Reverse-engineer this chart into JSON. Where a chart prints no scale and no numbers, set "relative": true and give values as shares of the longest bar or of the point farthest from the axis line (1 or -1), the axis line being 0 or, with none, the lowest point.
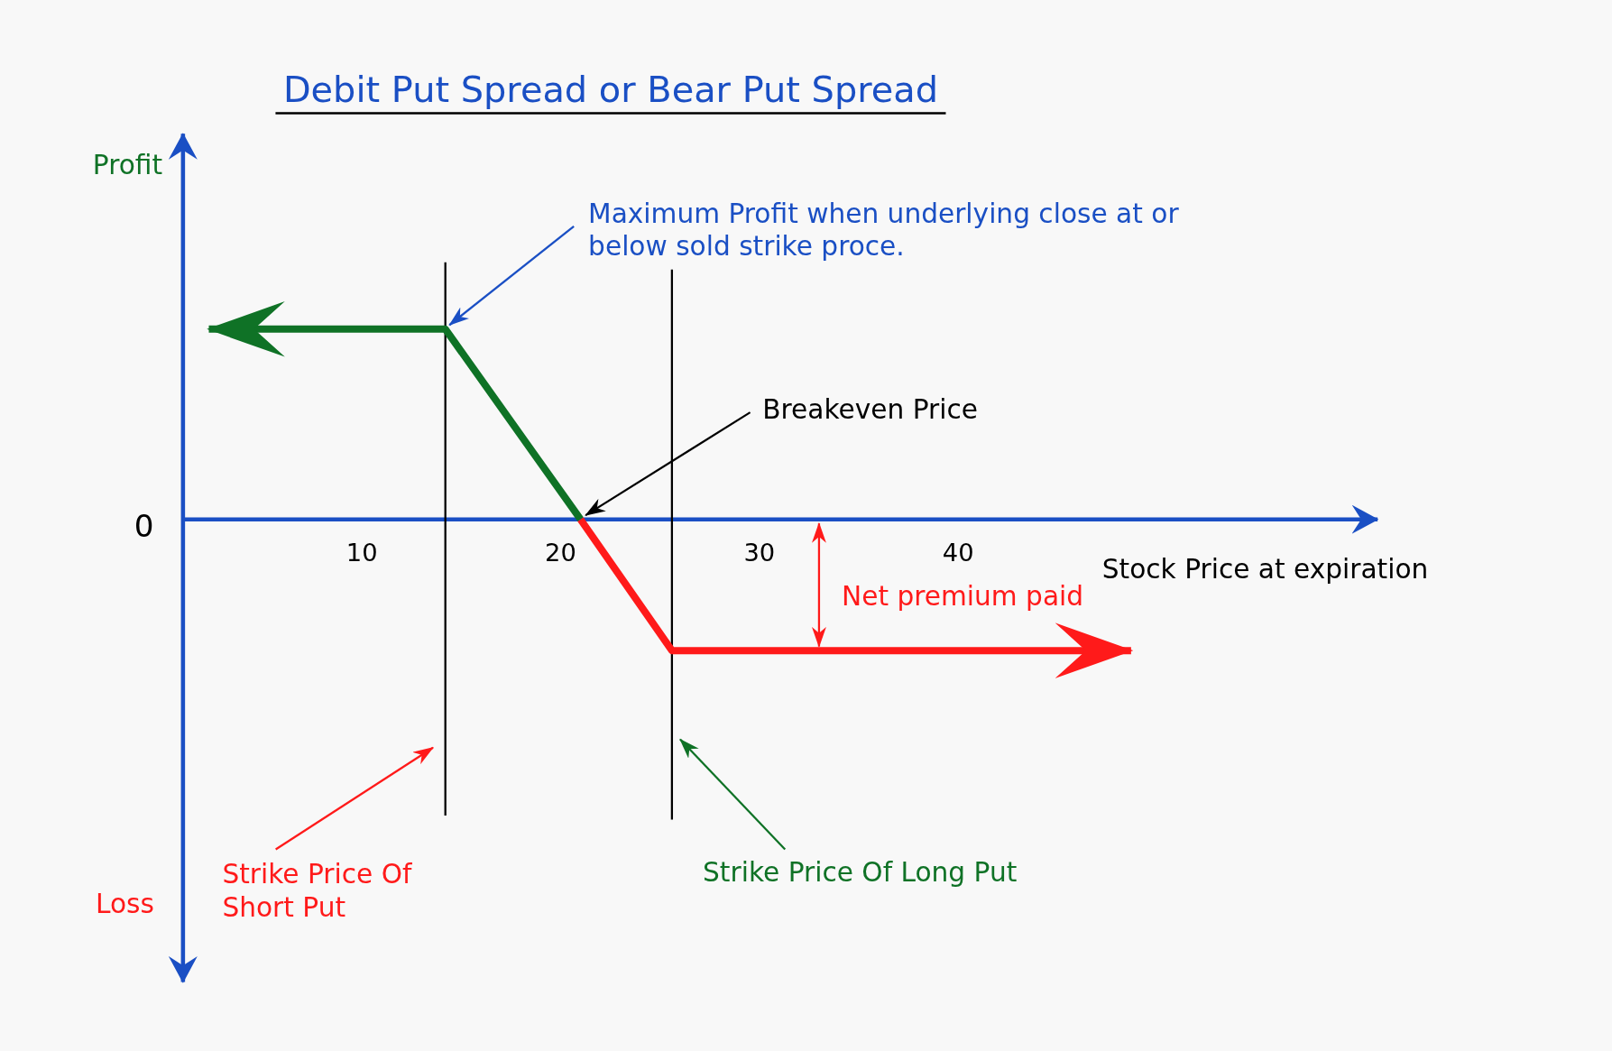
{
  "chart_data": {
    "type": "line",
    "title": "Debit Put Spread or Bear Put Spread",
    "xlabel": "Stock Price at expiration",
    "xlim": [
      1,
      61
    ],
    "xticks": [
      10,
      20,
      30,
      40
    ],
    "relative": true,
    "series": [
      {
        "color": "#0f7226",
        "x": [
          2.3,
          14.2,
          21
        ],
        "values": [
          1,
          1,
          0
        ]
      },
      {
        "color": "#ff1a1a",
        "x": [
          21,
          25.6,
          48.7
        ],
        "values": [
          0,
          -0.69,
          -0.69
        ]
      }
    ],
    "ref_lines": [
      {
        "axis": "x",
        "value": 14.2,
        "label": "Strike Price Of Short Put",
        "color": "#000000"
      },
      {
        "axis": "x",
        "value": 25.6,
        "label": "Strike Price Of Long Put",
        "color": "#000000"
      }
    ],
    "annotations": [
      {
        "text": "Maximum Profit when underlying close at or below sold strike proce.",
        "x": 14.2,
        "y": 1
      },
      {
        "text": "Breakeven Price",
        "x": 21,
        "y": 0
      },
      {
        "text": "Net premium paid",
        "x": 33,
        "y": -0.69
      },
      "Profit",
      "Loss",
      "0"
    ]
  }
}
